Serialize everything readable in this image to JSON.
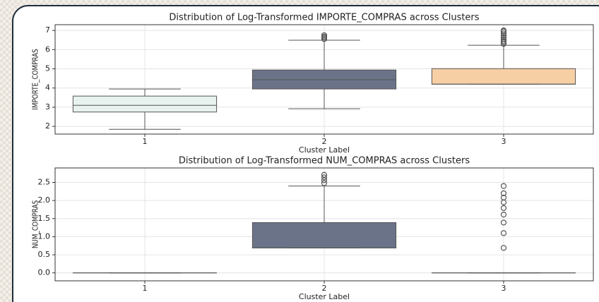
{
  "chart_data": [
    {
      "type": "box",
      "title": "Distribution of Log-Transformed IMPORTE_COMPRAS across Clusters",
      "x_label": "Cluster Label",
      "y_label": "IMPORTE_COMPRAS",
      "categories": [
        "1",
        "2",
        "3"
      ],
      "colors": [
        "#e8f2ee",
        "#6b7389",
        "#f7cfa4"
      ],
      "ylim": [
        1.6,
        7.3
      ],
      "yticks": [
        2,
        3,
        4,
        5,
        6,
        7
      ],
      "grid": true,
      "boxes": [
        {
          "whislo": 1.85,
          "q1": 2.75,
          "med": 3.1,
          "q3": 3.58,
          "whishi": 3.95,
          "fliers": []
        },
        {
          "whislo": 2.92,
          "q1": 3.95,
          "med": 4.43,
          "q3": 4.94,
          "whishi": 6.49,
          "fliers": [
            6.55,
            6.62,
            6.68,
            6.75
          ]
        },
        {
          "whislo": 4.2,
          "q1": 4.2,
          "med": 4.2,
          "q3": 5.01,
          "whishi": 6.23,
          "fliers": [
            6.3,
            6.38,
            6.45,
            6.55,
            6.65,
            6.75,
            6.85,
            6.95,
            7.0
          ]
        }
      ]
    },
    {
      "type": "box",
      "title": "Distribution of Log-Transformed NUM_COMPRAS across Clusters",
      "x_label": "Cluster Label",
      "y_label": "NUM_COMPRAS",
      "categories": [
        "1",
        "2",
        "3"
      ],
      "colors": [
        "#e8f2ee",
        "#6b7389",
        "#f7cfa4"
      ],
      "ylim": [
        -0.22,
        2.9
      ],
      "yticks": [
        {
          "value": 0,
          "label": "0.0"
        },
        {
          "value": 0.5,
          "label": "0.5"
        },
        {
          "value": 1,
          "label": "1.0"
        },
        {
          "value": 1.5,
          "label": "1.5"
        },
        {
          "value": 2,
          "label": "2.0"
        },
        {
          "value": 2.5,
          "label": "2.5"
        }
      ],
      "grid": true,
      "boxes": [
        {
          "whislo": 0,
          "q1": 0,
          "med": 0,
          "q3": 0,
          "whishi": 0,
          "fliers": []
        },
        {
          "whislo": 0.69,
          "q1": 0.69,
          "med": 0.69,
          "q3": 1.39,
          "whishi": 2.4,
          "fliers": [
            2.48,
            2.56,
            2.64,
            2.71
          ]
        },
        {
          "whislo": 0,
          "q1": 0,
          "med": 0,
          "q3": 0,
          "whishi": 0,
          "fliers": [
            0.69,
            1.1,
            1.39,
            1.61,
            1.79,
            1.95,
            2.08,
            2.2,
            2.4
          ]
        }
      ]
    }
  ]
}
